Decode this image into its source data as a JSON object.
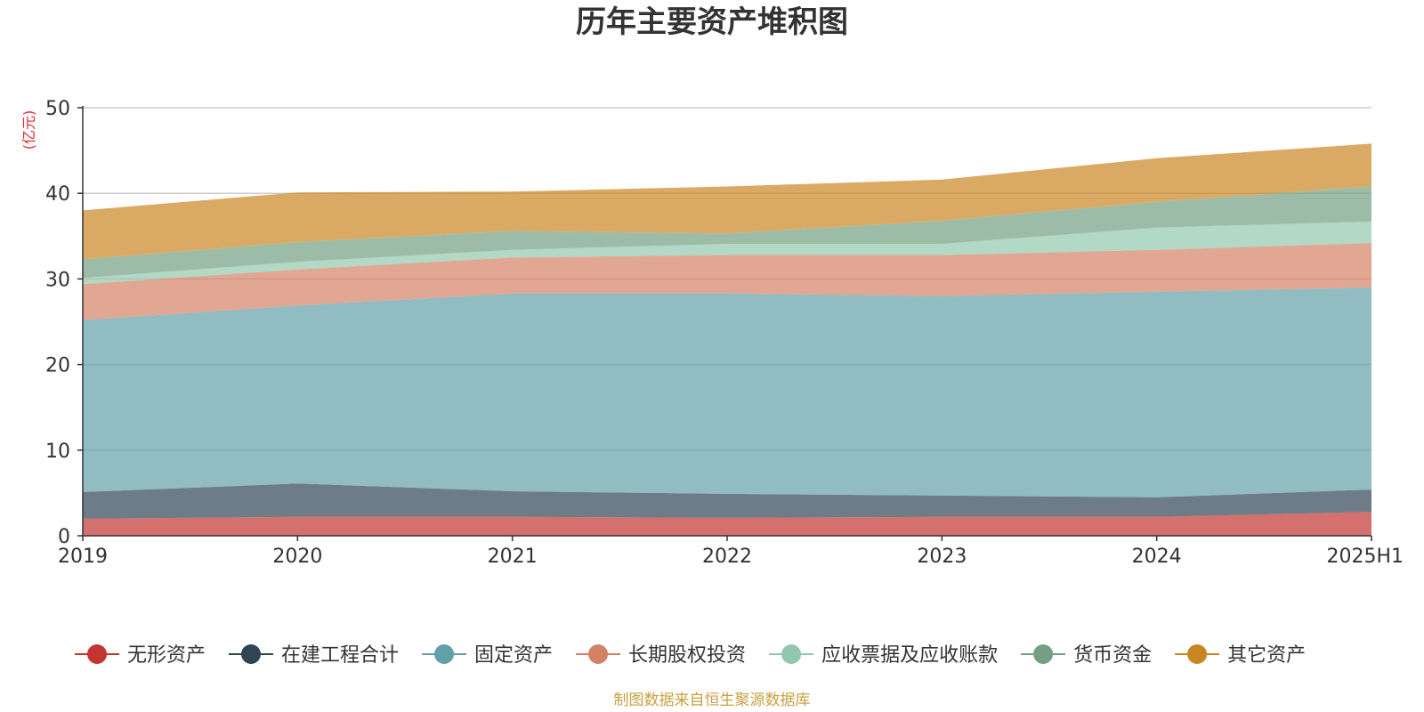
{
  "chart_data": {
    "type": "area",
    "stacked": true,
    "title": "历年主要资产堆积图",
    "ylabel": "(亿元)",
    "xlabel": "",
    "categories": [
      "2019",
      "2020",
      "2021",
      "2022",
      "2023",
      "2024",
      "2025H1"
    ],
    "ylim": [
      0,
      50
    ],
    "yticks": [
      0,
      10,
      20,
      30,
      40,
      50
    ],
    "grid": true,
    "legend_position": "bottom",
    "series": [
      {
        "name": "无形资产",
        "color": "#c23531",
        "values": [
          2.0,
          2.2,
          2.2,
          2.1,
          2.2,
          2.2,
          2.8
        ]
      },
      {
        "name": "在建工程合计",
        "color": "#2f4554",
        "values": [
          3.1,
          3.9,
          3.0,
          2.8,
          2.5,
          2.3,
          2.6
        ]
      },
      {
        "name": "固定资产",
        "color": "#61a0a8",
        "values": [
          20.1,
          20.8,
          23.1,
          23.4,
          23.3,
          24.0,
          23.6
        ]
      },
      {
        "name": "长期股权投资",
        "color": "#d48265",
        "values": [
          4.2,
          4.2,
          4.2,
          4.5,
          4.8,
          4.9,
          5.2
        ]
      },
      {
        "name": "应收票据及应收账款",
        "color": "#91c7ae",
        "values": [
          0.7,
          0.9,
          0.9,
          1.3,
          1.3,
          2.6,
          2.5
        ]
      },
      {
        "name": "货币资金",
        "color": "#749f83",
        "values": [
          2.2,
          2.3,
          2.2,
          1.2,
          2.7,
          3.0,
          4.1
        ]
      },
      {
        "name": "其它资产",
        "color": "#ca8622",
        "values": [
          5.7,
          5.8,
          4.6,
          5.5,
          4.8,
          5.1,
          5.0
        ]
      }
    ]
  },
  "footer": {
    "source": "制图数据来自恒生聚源数据库"
  },
  "colors": {
    "unit_label": "#e0282e",
    "source_text": "#c8a040",
    "axis": "#333333",
    "grid": "#cccccc"
  }
}
